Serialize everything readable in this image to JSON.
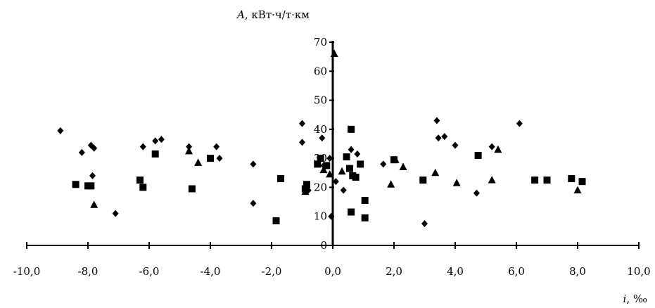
{
  "chart_data": {
    "type": "scatter",
    "title": "",
    "xlabel": "i, ‰",
    "ylabel": "A, кВт·ч/т·км",
    "xlabel_var": "i",
    "xlabel_unit": ", ‰",
    "ylabel_var": "A",
    "ylabel_unit": ", кВт·ч/т·км",
    "xlim": [
      -10,
      10
    ],
    "ylim": [
      0,
      70
    ],
    "x_ticks": [
      -10,
      -8,
      -6,
      -4,
      -2,
      0,
      2,
      4,
      6,
      8,
      10
    ],
    "x_tick_labels": [
      "-10,0",
      "-8,0",
      "-6,0",
      "-4,0",
      "-2,0",
      "0,0",
      "2,0",
      "4,0",
      "6,0",
      "8,0",
      "10,0"
    ],
    "y_ticks": [
      0,
      10,
      20,
      30,
      40,
      50,
      60,
      70
    ],
    "y_tick_labels": [
      "0",
      "10",
      "20",
      "30",
      "40",
      "50",
      "60",
      "70"
    ],
    "grid": false,
    "legend": "none",
    "colors": {
      "marker": "#000000",
      "axis": "#000000"
    },
    "series": [
      {
        "marker": "diamond",
        "points": [
          [
            -8.9,
            39.5
          ],
          [
            -8.2,
            32
          ],
          [
            -7.9,
            34.5
          ],
          [
            -7.8,
            33.5
          ],
          [
            -7.85,
            24
          ],
          [
            -7.1,
            11
          ],
          [
            -6.2,
            34
          ],
          [
            -5.8,
            36
          ],
          [
            -5.6,
            36.5
          ],
          [
            -4.7,
            34
          ],
          [
            -3.8,
            34
          ],
          [
            -3.7,
            30
          ],
          [
            -2.6,
            28
          ],
          [
            -2.6,
            14.5
          ],
          [
            -1.0,
            42
          ],
          [
            -1.0,
            35.5
          ],
          [
            -0.8,
            19
          ],
          [
            -0.35,
            37
          ],
          [
            -0.3,
            27.5
          ],
          [
            -0.1,
            30
          ],
          [
            -0.05,
            10
          ],
          [
            0.1,
            22
          ],
          [
            0.35,
            19
          ],
          [
            0.6,
            33
          ],
          [
            0.8,
            31.5
          ],
          [
            1.65,
            28
          ],
          [
            3.0,
            7.5
          ],
          [
            3.4,
            43
          ],
          [
            3.45,
            37
          ],
          [
            3.65,
            37.5
          ],
          [
            4.0,
            34.5
          ],
          [
            4.7,
            18
          ],
          [
            5.2,
            34
          ],
          [
            6.1,
            42
          ]
        ]
      },
      {
        "marker": "square",
        "points": [
          [
            -8.4,
            21
          ],
          [
            -8.0,
            20.5
          ],
          [
            -7.9,
            20.5
          ],
          [
            -6.3,
            22.5
          ],
          [
            -6.2,
            20
          ],
          [
            -5.8,
            31.5
          ],
          [
            -4.6,
            19.5
          ],
          [
            -4.0,
            30
          ],
          [
            -1.7,
            23
          ],
          [
            -1.85,
            8.5
          ],
          [
            -0.9,
            19.5
          ],
          [
            -0.85,
            21
          ],
          [
            -0.5,
            28
          ],
          [
            -0.4,
            30
          ],
          [
            -0.2,
            27.5
          ],
          [
            0.45,
            30.5
          ],
          [
            0.55,
            26.5
          ],
          [
            0.6,
            40
          ],
          [
            0.65,
            24
          ],
          [
            0.75,
            23.5
          ],
          [
            0.6,
            11.5
          ],
          [
            0.9,
            28
          ],
          [
            1.05,
            15.5
          ],
          [
            1.05,
            9.5
          ],
          [
            2.0,
            29.5
          ],
          [
            2.95,
            22.5
          ],
          [
            4.75,
            31
          ],
          [
            6.6,
            22.5
          ],
          [
            7.0,
            22.5
          ],
          [
            7.8,
            23
          ],
          [
            8.15,
            22
          ]
        ]
      },
      {
        "marker": "triangle",
        "points": [
          [
            -7.8,
            14
          ],
          [
            -4.7,
            32.5
          ],
          [
            -4.4,
            28.5
          ],
          [
            -0.9,
            18.5
          ],
          [
            -0.3,
            26
          ],
          [
            -0.1,
            24.5
          ],
          [
            0.05,
            66
          ],
          [
            0.3,
            25.5
          ],
          [
            1.9,
            21
          ],
          [
            2.05,
            29.5
          ],
          [
            2.3,
            27
          ],
          [
            3.35,
            25
          ],
          [
            4.05,
            21.5
          ],
          [
            5.2,
            22.5
          ],
          [
            5.4,
            33
          ],
          [
            8.0,
            19
          ]
        ]
      }
    ]
  }
}
